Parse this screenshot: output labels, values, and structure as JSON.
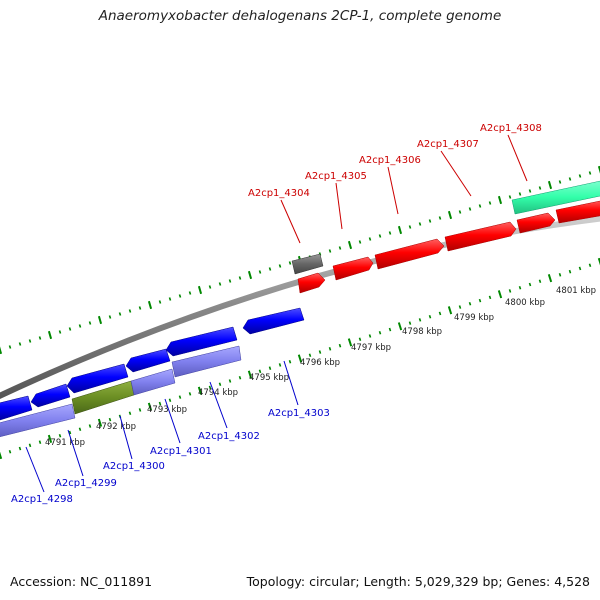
{
  "title": "Anaeromyxobacter dehalogenans 2CP-1, complete genome",
  "footer": {
    "accession": "Accession: NC_011891",
    "summary": "Topology: circular; Length: 5,029,329 bp; Genes: 4,528"
  },
  "colors": {
    "forward_gene": "#ff0000",
    "reverse_gene": "#0000ff",
    "backbone": "#888888",
    "ticks": "#008800",
    "lavender_track": "#8080ee",
    "olive_track": "#6b8e23",
    "teal_feature": "#33ffaa",
    "gray_feature": "#666666",
    "forward_label": "#cc0000",
    "reverse_label": "#0000cc"
  },
  "kbp_labels": [
    "4791 kbp",
    "4792 kbp",
    "4793 kbp",
    "4794 kbp",
    "4795 kbp",
    "4796 kbp",
    "4797 kbp",
    "4798 kbp",
    "4799 kbp",
    "4800 kbp",
    "4801 kbp"
  ],
  "forward_genes": [
    "A2cp1_4304",
    "A2cp1_4305",
    "A2cp1_4306",
    "A2cp1_4307",
    "A2cp1_4308"
  ],
  "reverse_genes": [
    "A2cp1_4298",
    "A2cp1_4299",
    "A2cp1_4300",
    "A2cp1_4301",
    "A2cp1_4302",
    "A2cp1_4303"
  ]
}
